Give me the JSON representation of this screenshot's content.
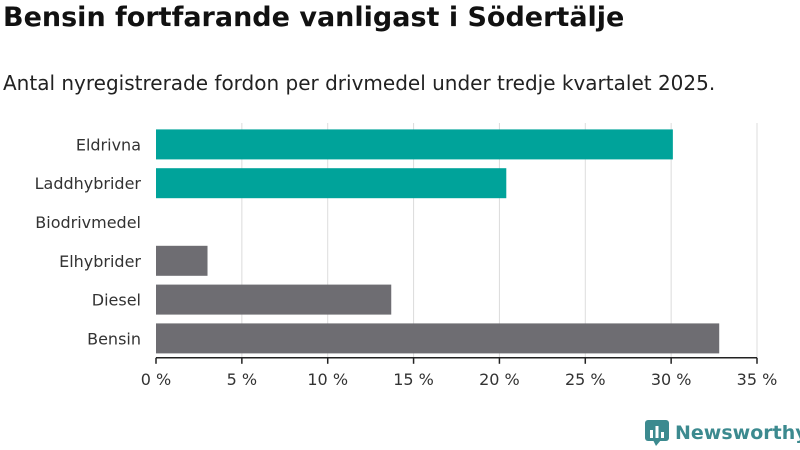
{
  "header": {
    "title": "Bensin fortfarande vanligast i Södertälje",
    "subtitle": "Antal nyregistrerade fordon per drivmedel under tredje kvartalet 2025."
  },
  "brand": {
    "name": "Newsworthy",
    "color": "#3c8a8f"
  },
  "chart_data": {
    "type": "bar",
    "orientation": "horizontal",
    "title": "Bensin fortfarande vanligast i Södertälje",
    "subtitle": "Antal nyregistrerade fordon per drivmedel under tredje kvartalet 2025.",
    "xlabel": "",
    "ylabel": "",
    "xlim": [
      0,
      35
    ],
    "xticks": [
      0,
      5,
      10,
      15,
      20,
      25,
      30,
      35
    ],
    "xtick_labels": [
      "0 %",
      "5 %",
      "10 %",
      "15 %",
      "20 %",
      "25 %",
      "30 %",
      "35 %"
    ],
    "grid": true,
    "categories": [
      "Eldrivna",
      "Laddhybrider",
      "Biodrivmedel",
      "Elhybrider",
      "Diesel",
      "Bensin"
    ],
    "values": [
      30.1,
      20.4,
      0,
      3.0,
      13.7,
      32.8
    ],
    "colors": [
      "#00a39a",
      "#00a39a",
      "#00a39a",
      "#6e6d72",
      "#6e6d72",
      "#6e6d72"
    ]
  }
}
